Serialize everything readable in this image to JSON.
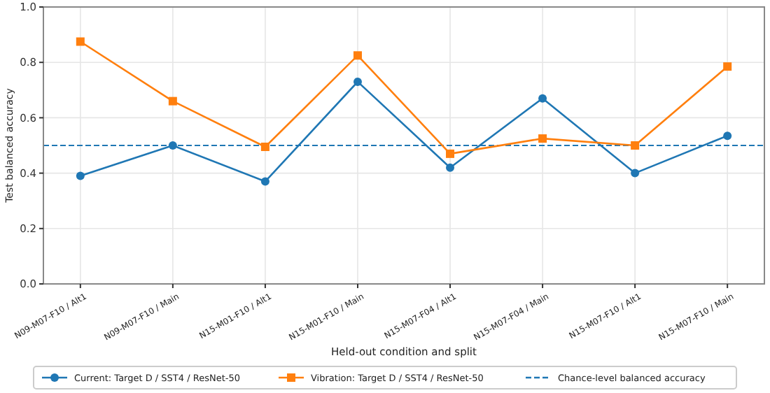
{
  "chart_data": {
    "type": "line",
    "xlabel": "Held-out condition and split",
    "ylabel": "Test balanced accuracy",
    "categories": [
      "N09-M07-F10 / Alt1",
      "N09-M07-F10 / Main",
      "N15-M01-F10 / Alt1",
      "N15-M01-F10 / Main",
      "N15-M07-F04 / Alt1",
      "N15-M07-F04 / Main",
      "N15-M07-F10 / Alt1",
      "N15-M07-F10 / Main"
    ],
    "series": [
      {
        "name": "Current: Target D / SST4 / ResNet-50",
        "color": "#1f77b4",
        "marker": "circle",
        "values": [
          0.39,
          0.5,
          0.37,
          0.73,
          0.42,
          0.67,
          0.4,
          0.535
        ]
      },
      {
        "name": "Vibration: Target D / SST4 / ResNet-50",
        "color": "#ff7f0e",
        "marker": "square",
        "values": [
          0.875,
          0.66,
          0.495,
          0.825,
          0.47,
          0.525,
          0.5,
          0.785
        ]
      }
    ],
    "ref_lines": [
      {
        "axis": "y",
        "value": 0.5,
        "label": "Chance-level balanced accuracy",
        "color": "#1f77b4",
        "line_style": "dashed"
      }
    ],
    "ylim": [
      0,
      1
    ],
    "yticks": [
      {
        "value": 0,
        "label": "0.0"
      },
      {
        "value": 0.2,
        "label": "0.2"
      },
      {
        "value": 0.4,
        "label": "0.4"
      },
      {
        "value": 0.6,
        "label": "0.6"
      },
      {
        "value": 0.8,
        "label": "0.8"
      },
      {
        "value": 1,
        "label": "1.0"
      }
    ],
    "grid": true,
    "legend": "bottom",
    "line_style": "solid"
  }
}
